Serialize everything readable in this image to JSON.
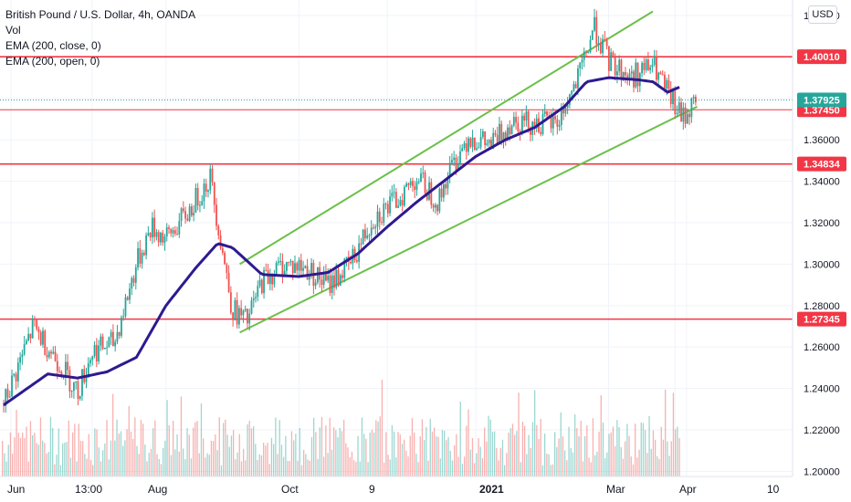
{
  "legend": {
    "symbol": "British Pound / U.S. Dollar, 4h, OANDA",
    "vol": "Vol",
    "ema_close": "EMA (200, close, 0)",
    "ema_open": "EMA (200, open, 0)"
  },
  "currency_button": "USD",
  "colors": {
    "up": "#26a69a",
    "down": "#ef5350",
    "ema": "#2e1a8f",
    "channel": "#6cc04a",
    "level": "#f23645",
    "price": "#26a69a"
  },
  "chart_data": {
    "type": "candlestick",
    "x_ticks": [
      "Jun",
      "13:00",
      "Aug",
      "Oct",
      "9",
      "2021",
      "Mar",
      "Apr",
      "10"
    ],
    "y_ticks": [
      "1.42000",
      "1.40000",
      "1.38000",
      "1.36000",
      "1.34000",
      "1.32000",
      "1.30000",
      "1.28000",
      "1.26000",
      "1.24000",
      "1.22000",
      "1.20000"
    ],
    "ylim": [
      1.1975,
      1.4275
    ],
    "price_path": [
      [
        0,
        1.232
      ],
      [
        0.04,
        1.27
      ],
      [
        0.08,
        1.25
      ],
      [
        0.1,
        1.238
      ],
      [
        0.12,
        1.258
      ],
      [
        0.15,
        1.262
      ],
      [
        0.18,
        1.3
      ],
      [
        0.2,
        1.318
      ],
      [
        0.22,
        1.312
      ],
      [
        0.25,
        1.325
      ],
      [
        0.28,
        1.342
      ],
      [
        0.31,
        1.278
      ],
      [
        0.33,
        1.272
      ],
      [
        0.35,
        1.292
      ],
      [
        0.38,
        1.3
      ],
      [
        0.41,
        1.298
      ],
      [
        0.44,
        1.29
      ],
      [
        0.47,
        1.3
      ],
      [
        0.5,
        1.322
      ],
      [
        0.53,
        1.33
      ],
      [
        0.56,
        1.342
      ],
      [
        0.59,
        1.33
      ],
      [
        0.6,
        1.342
      ],
      [
        0.63,
        1.362
      ],
      [
        0.66,
        1.357
      ],
      [
        0.69,
        1.37
      ],
      [
        0.72,
        1.368
      ],
      [
        0.75,
        1.368
      ],
      [
        0.78,
        1.39
      ],
      [
        0.8,
        1.415
      ],
      [
        0.82,
        1.398
      ],
      [
        0.85,
        1.39
      ],
      [
        0.88,
        1.396
      ],
      [
        0.9,
        1.382
      ],
      [
        0.92,
        1.37
      ],
      [
        0.94,
        1.38
      ]
    ],
    "ema_path": [
      [
        0,
        1.232
      ],
      [
        0.06,
        1.247
      ],
      [
        0.1,
        1.245
      ],
      [
        0.14,
        1.248
      ],
      [
        0.18,
        1.255
      ],
      [
        0.22,
        1.28
      ],
      [
        0.26,
        1.298
      ],
      [
        0.29,
        1.31
      ],
      [
        0.31,
        1.308
      ],
      [
        0.35,
        1.295
      ],
      [
        0.4,
        1.294
      ],
      [
        0.44,
        1.296
      ],
      [
        0.48,
        1.305
      ],
      [
        0.52,
        1.318
      ],
      [
        0.56,
        1.33
      ],
      [
        0.6,
        1.341
      ],
      [
        0.64,
        1.352
      ],
      [
        0.68,
        1.36
      ],
      [
        0.72,
        1.366
      ],
      [
        0.76,
        1.376
      ],
      [
        0.79,
        1.388
      ],
      [
        0.82,
        1.39
      ],
      [
        0.86,
        1.389
      ],
      [
        0.88,
        1.388
      ],
      [
        0.9,
        1.383
      ],
      [
        0.92,
        1.386
      ]
    ],
    "horizontal_levels": [
      {
        "price": 1.4001,
        "label": "1.40010"
      },
      {
        "price": 1.3745,
        "label": "1.37450"
      },
      {
        "price": 1.34834,
        "label": "1.34834"
      },
      {
        "price": 1.27345,
        "label": "1.27345"
      }
    ],
    "current_price": {
      "price": 1.37925,
      "label": "1.37925"
    },
    "channel": {
      "upper": [
        [
          0.32,
          1.3
        ],
        [
          0.88,
          1.422
        ]
      ],
      "lower": [
        [
          0.32,
          1.267
        ],
        [
          0.94,
          1.376
        ]
      ]
    },
    "volume_note": "random-style volume histogram along bottom"
  }
}
